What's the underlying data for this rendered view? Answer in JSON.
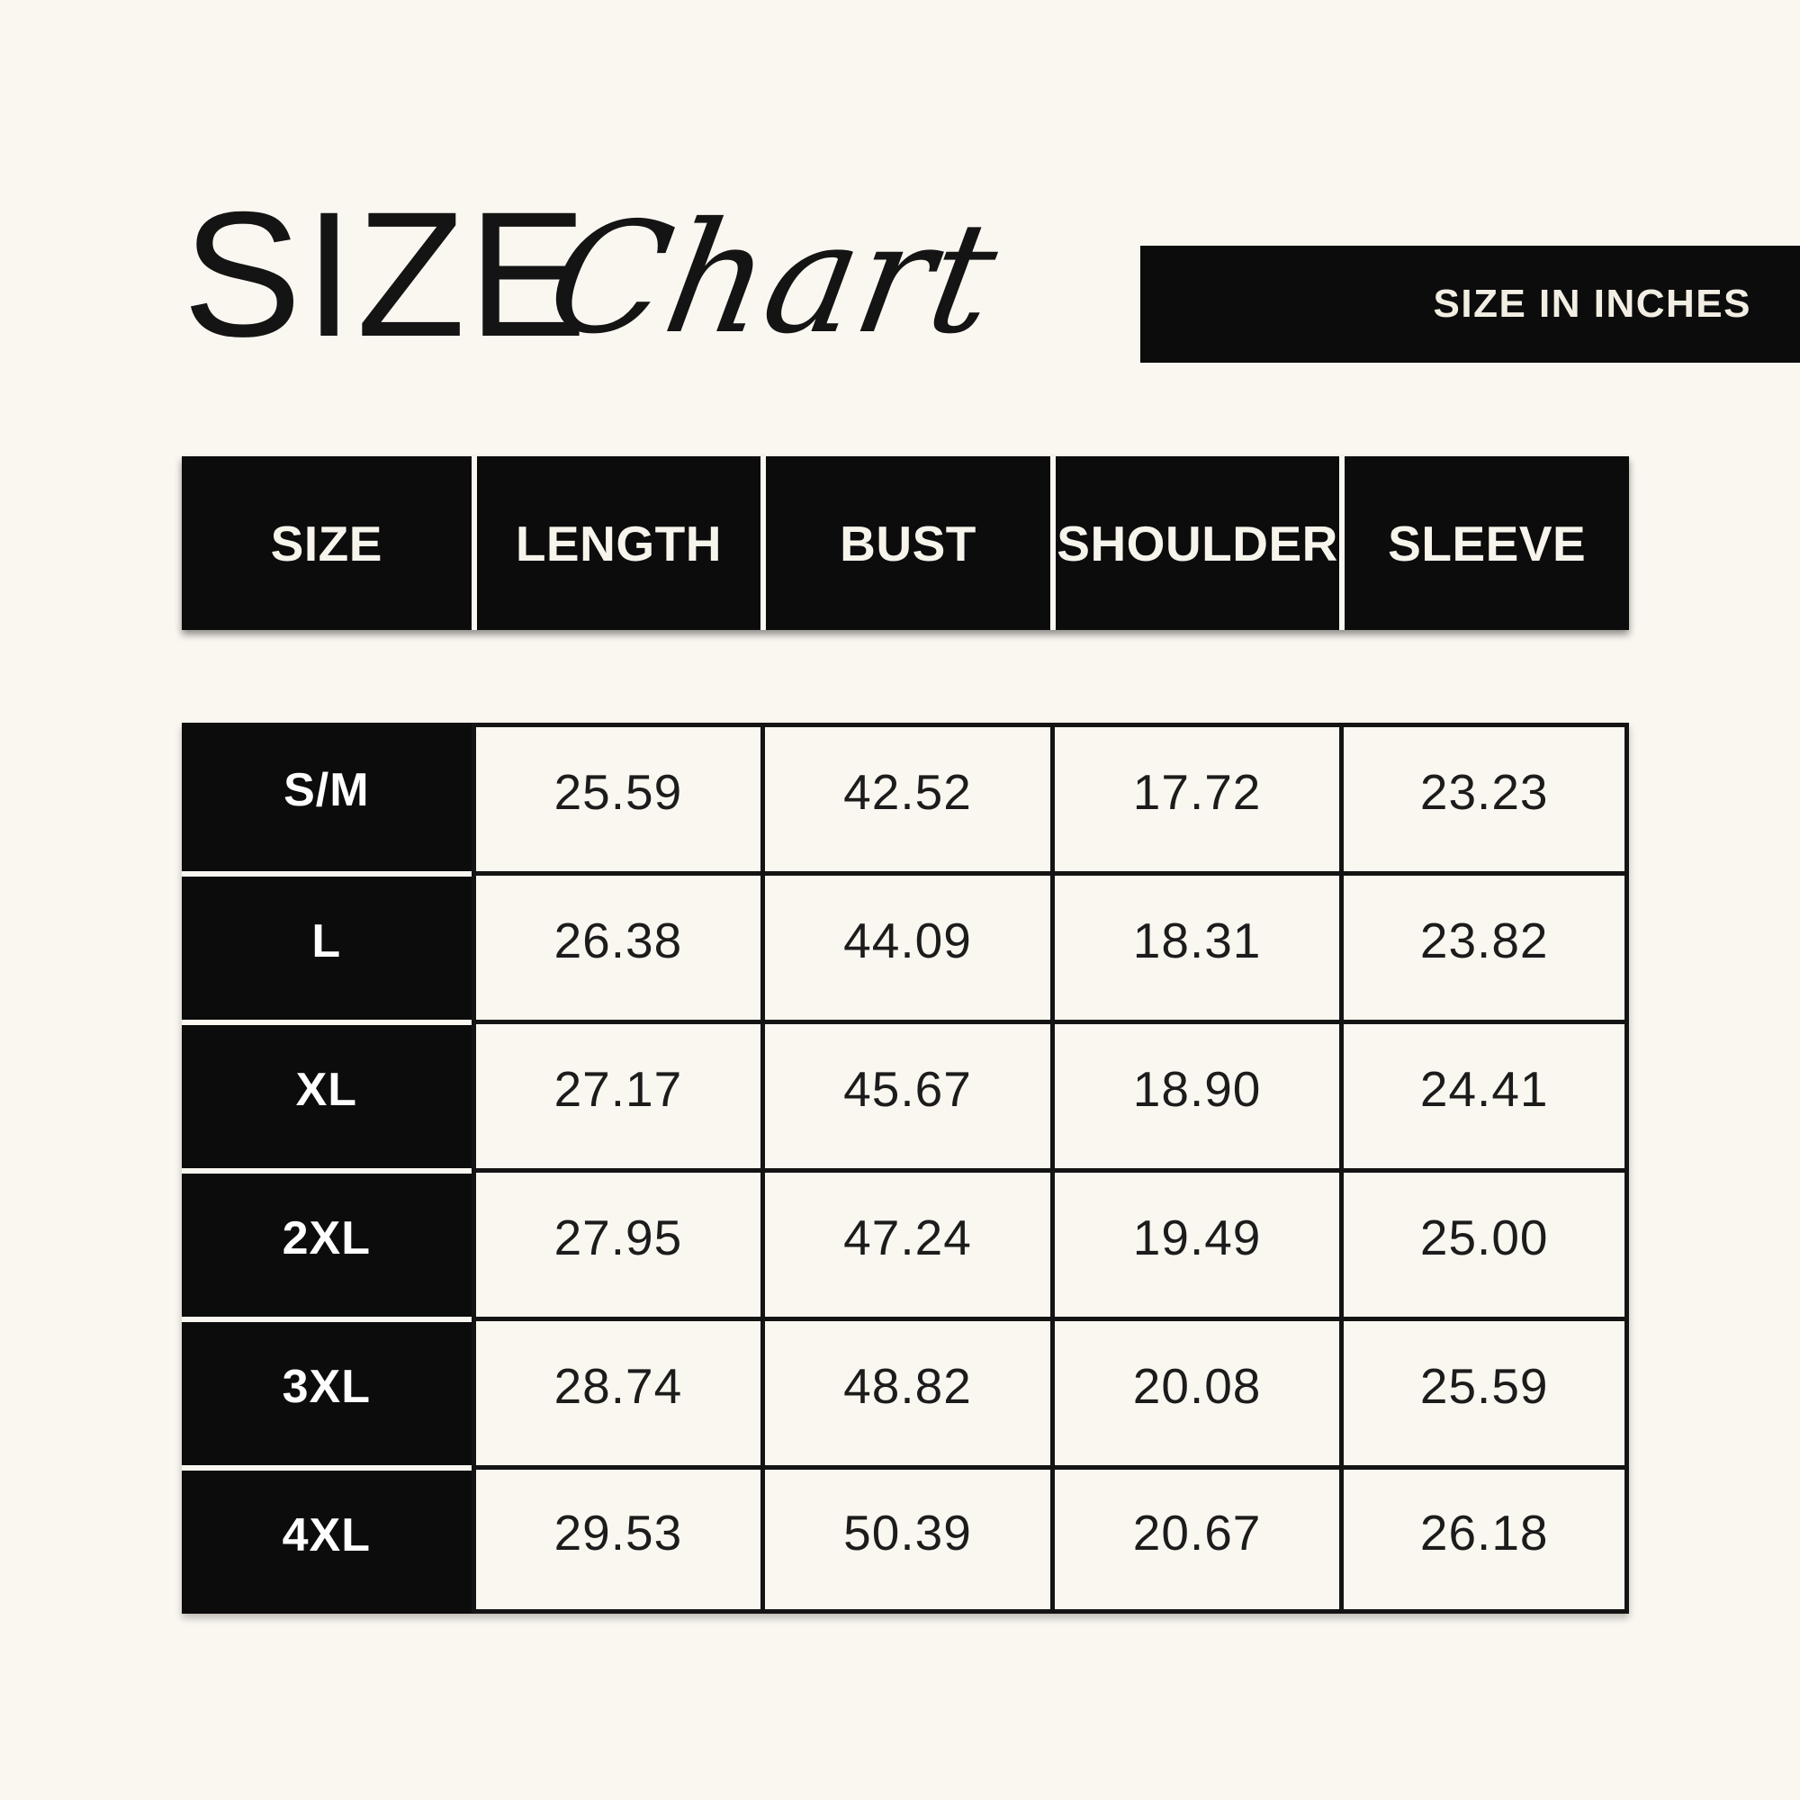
{
  "colors": {
    "background": "#faf7f0",
    "ink": "#141414",
    "panel": "#0c0c0c",
    "cream": "#f3eee3"
  },
  "title": {
    "block": "SIZE",
    "script": "Chart"
  },
  "badge": {
    "label": "SIZE IN INCHES"
  },
  "table": {
    "headers": [
      "SIZE",
      "LENGTH",
      "BUST",
      "SHOULDER",
      "SLEEVE"
    ],
    "rows": [
      {
        "size": "S/M",
        "values": [
          "25.59",
          "42.52",
          "17.72",
          "23.23"
        ]
      },
      {
        "size": "L",
        "values": [
          "26.38",
          "44.09",
          "18.31",
          "23.82"
        ]
      },
      {
        "size": "XL",
        "values": [
          "27.17",
          "45.67",
          "18.90",
          "24.41"
        ]
      },
      {
        "size": "2XL",
        "values": [
          "27.95",
          "47.24",
          "19.49",
          "25.00"
        ]
      },
      {
        "size": "3XL",
        "values": [
          "28.74",
          "48.82",
          "20.08",
          "25.59"
        ]
      },
      {
        "size": "4XL",
        "values": [
          "29.53",
          "50.39",
          "20.67",
          "26.18"
        ]
      }
    ]
  },
  "chart_data": {
    "type": "table",
    "title": "SIZE Chart",
    "unit": "inches",
    "columns": [
      "SIZE",
      "LENGTH",
      "BUST",
      "SHOULDER",
      "SLEEVE"
    ],
    "rows": [
      [
        "S/M",
        25.59,
        42.52,
        17.72,
        23.23
      ],
      [
        "L",
        26.38,
        44.09,
        18.31,
        23.82
      ],
      [
        "XL",
        27.17,
        45.67,
        18.9,
        24.41
      ],
      [
        "2XL",
        27.95,
        47.24,
        19.49,
        25.0
      ],
      [
        "3XL",
        28.74,
        48.82,
        20.08,
        25.59
      ],
      [
        "4XL",
        29.53,
        50.39,
        20.67,
        26.18
      ]
    ]
  }
}
